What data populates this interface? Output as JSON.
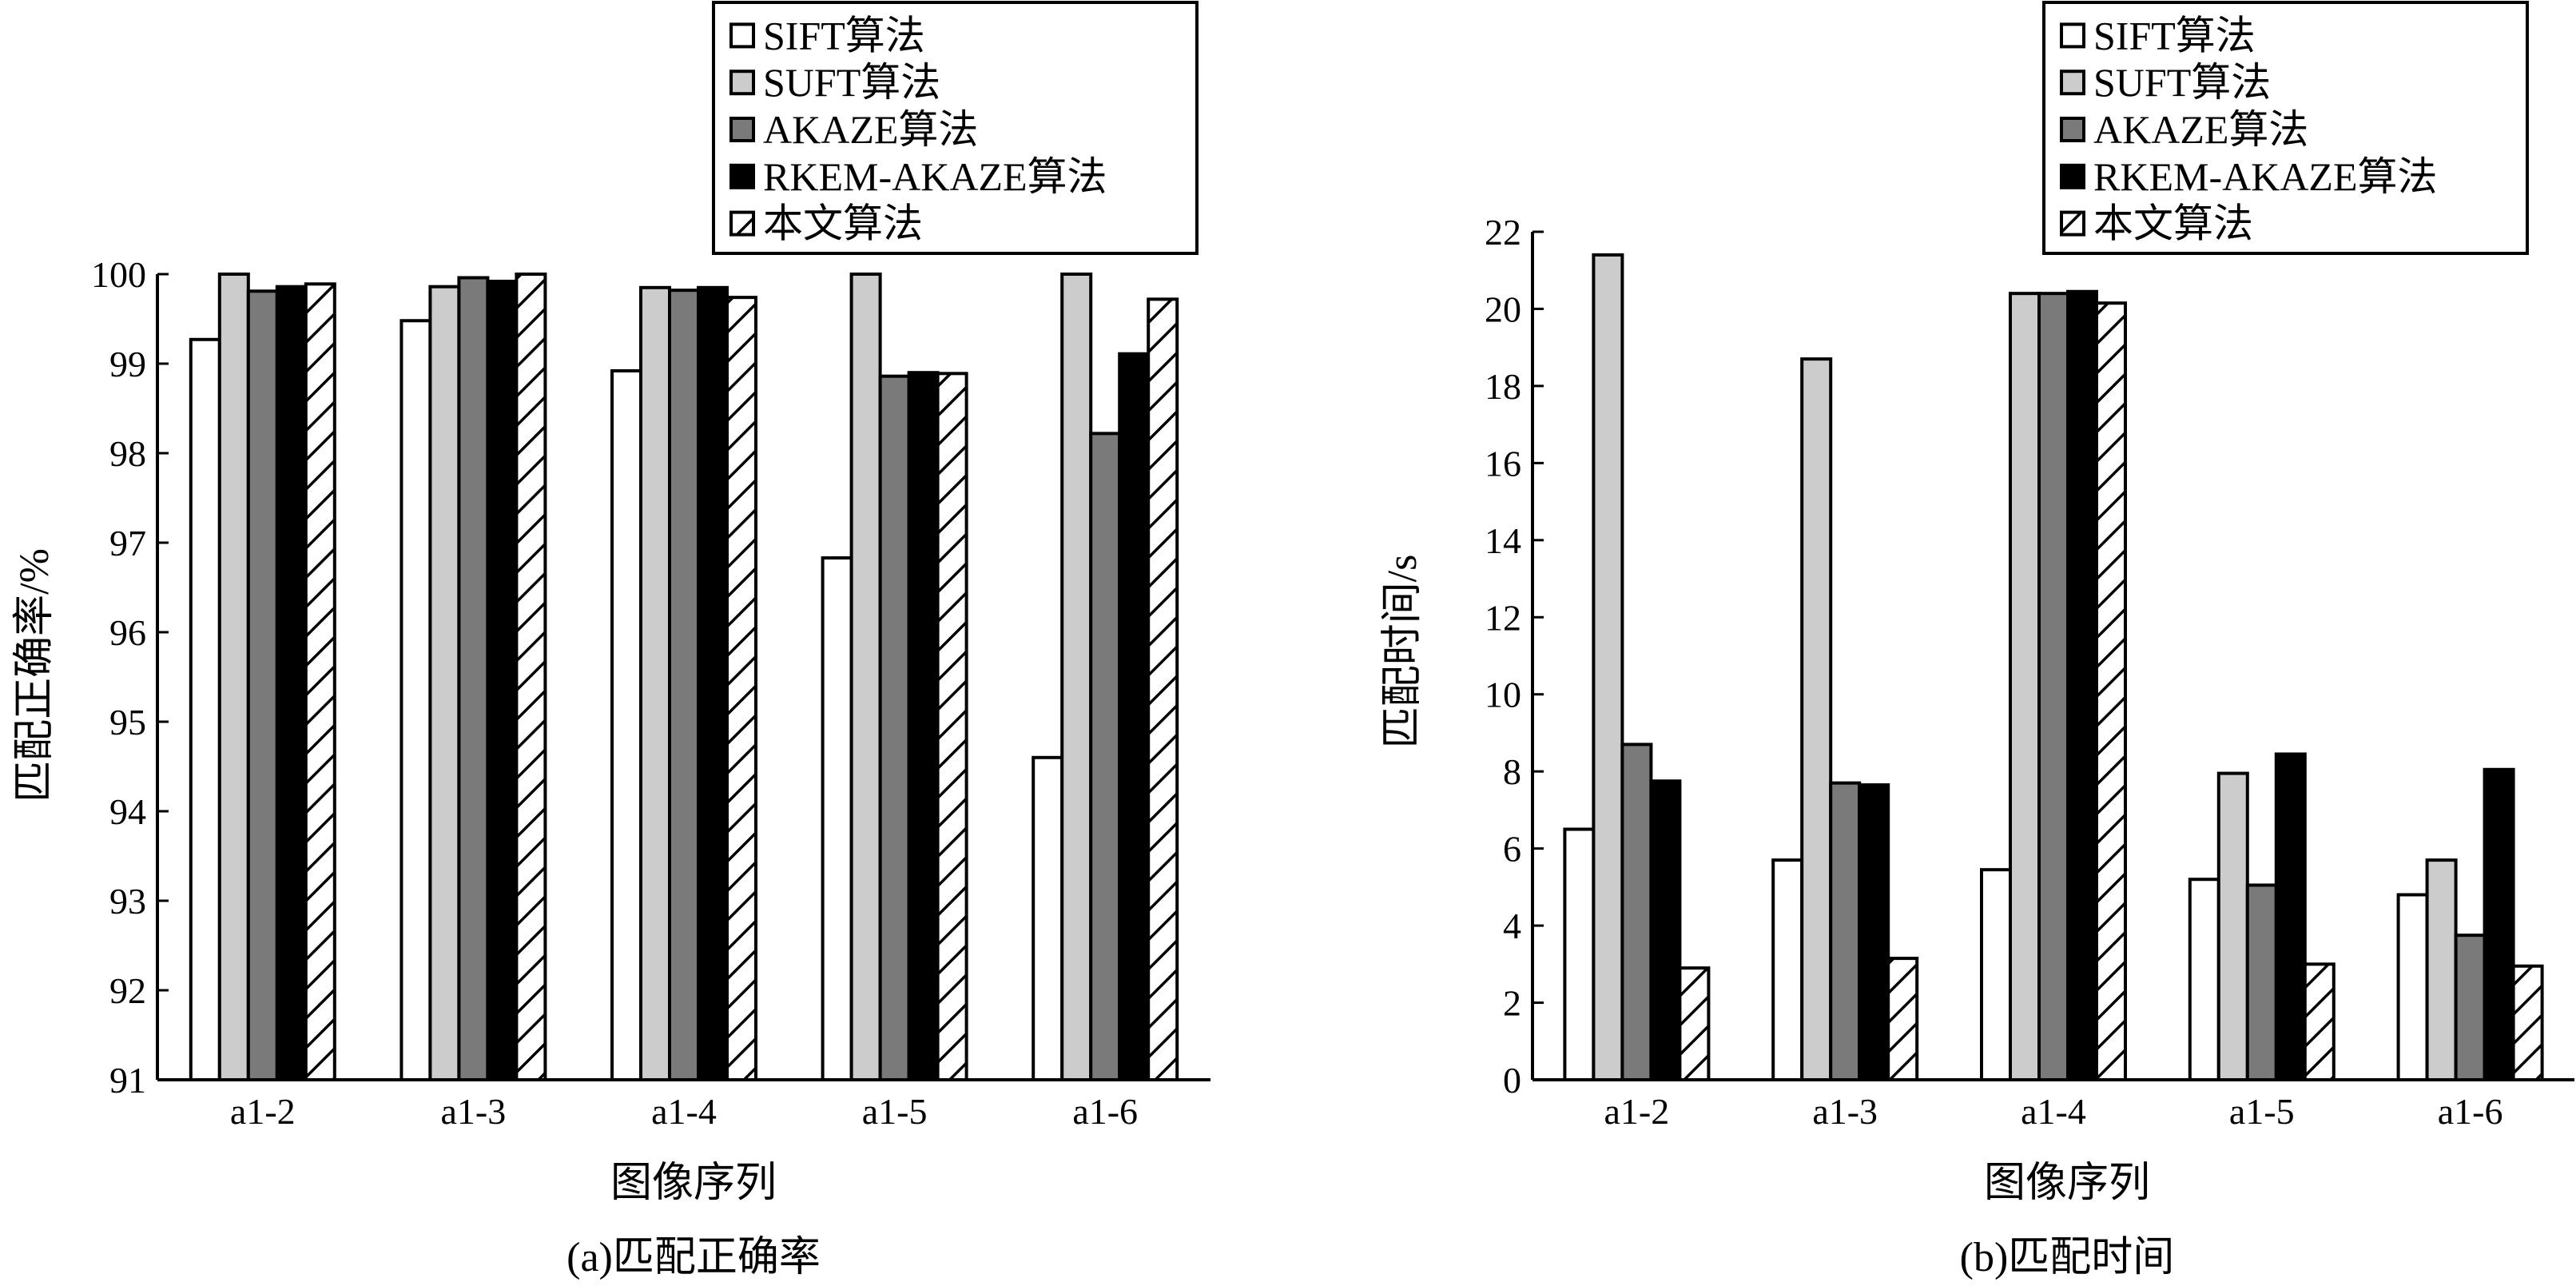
{
  "chart_data": [
    {
      "type": "bar",
      "caption": "(a)匹配正确率",
      "xlabel": "图像序列",
      "ylabel": "匹配正确率/%",
      "categories": [
        "a1-2",
        "a1-3",
        "a1-4",
        "a1-5",
        "a1-6"
      ],
      "ylim": [
        91,
        100
      ],
      "yticks": [
        91,
        92,
        93,
        94,
        95,
        96,
        97,
        98,
        99,
        100
      ],
      "legend_position": "top",
      "series": [
        {
          "name": "SIFT算法",
          "values": [
            99.27,
            99.48,
            98.92,
            96.83,
            94.6
          ]
        },
        {
          "name": "SUFT算法",
          "values": [
            100,
            99.86,
            99.85,
            100,
            100
          ]
        },
        {
          "name": "AKAZE算法",
          "values": [
            99.81,
            99.96,
            99.82,
            98.86,
            98.22
          ]
        },
        {
          "name": "RKEM-AKAZE算法",
          "values": [
            99.86,
            99.92,
            99.85,
            98.9,
            99.11
          ]
        },
        {
          "name": "本文算法",
          "values": [
            99.89,
            100,
            99.74,
            98.89,
            99.72
          ]
        }
      ]
    },
    {
      "type": "bar",
      "caption": "(b)匹配时间",
      "xlabel": "图像序列",
      "ylabel": "匹配时间/s",
      "categories": [
        "a1-2",
        "a1-3",
        "a1-4",
        "a1-5",
        "a1-6"
      ],
      "ylim": [
        0,
        22
      ],
      "yticks": [
        0,
        2,
        4,
        6,
        8,
        10,
        12,
        14,
        16,
        18,
        20,
        22
      ],
      "legend_position": "top-right",
      "series": [
        {
          "name": "SIFT算法",
          "values": [
            6.5,
            5.7,
            5.45,
            5.2,
            4.8
          ]
        },
        {
          "name": "SUFT算法",
          "values": [
            21.4,
            18.7,
            20.4,
            7.95,
            5.7
          ]
        },
        {
          "name": "AKAZE算法",
          "values": [
            8.7,
            7.7,
            20.4,
            5.05,
            3.75
          ]
        },
        {
          "name": "RKEM-AKAZE算法",
          "values": [
            7.75,
            7.65,
            20.45,
            8.45,
            8.05
          ]
        },
        {
          "name": "本文算法",
          "values": [
            2.9,
            3.15,
            20.15,
            3.0,
            2.95
          ]
        }
      ]
    }
  ],
  "series_styles": [
    {
      "fill": "#ffffff",
      "pattern": "none"
    },
    {
      "fill": "#cccccc",
      "pattern": "none"
    },
    {
      "fill": "#7a7a7a",
      "pattern": "none"
    },
    {
      "fill": "#000000",
      "pattern": "none"
    },
    {
      "fill": "#ffffff",
      "pattern": "hatch"
    }
  ]
}
